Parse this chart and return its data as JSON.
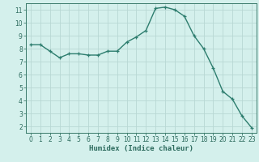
{
  "x": [
    0,
    1,
    2,
    3,
    4,
    5,
    6,
    7,
    8,
    9,
    10,
    11,
    12,
    13,
    14,
    15,
    16,
    17,
    18,
    19,
    20,
    21,
    22,
    23
  ],
  "y": [
    8.3,
    8.3,
    7.8,
    7.3,
    7.6,
    7.6,
    7.5,
    7.5,
    7.8,
    7.8,
    8.5,
    8.9,
    9.4,
    11.1,
    11.2,
    11.0,
    10.5,
    9.0,
    8.0,
    6.5,
    4.7,
    4.1,
    2.8,
    1.9
  ],
  "line_color": "#2d7d6e",
  "marker": "+",
  "marker_size": 3,
  "bg_color": "#d4f0ec",
  "grid_color": "#b8d8d4",
  "xlabel": "Humidex (Indice chaleur)",
  "xlim": [
    -0.5,
    23.5
  ],
  "ylim": [
    1.5,
    11.5
  ],
  "yticks": [
    2,
    3,
    4,
    5,
    6,
    7,
    8,
    9,
    10,
    11
  ],
  "xticks": [
    0,
    1,
    2,
    3,
    4,
    5,
    6,
    7,
    8,
    9,
    10,
    11,
    12,
    13,
    14,
    15,
    16,
    17,
    18,
    19,
    20,
    21,
    22,
    23
  ],
  "tick_label_fontsize": 5.5,
  "xlabel_fontsize": 6.5,
  "linewidth": 1.0,
  "markeredgewidth": 0.9
}
